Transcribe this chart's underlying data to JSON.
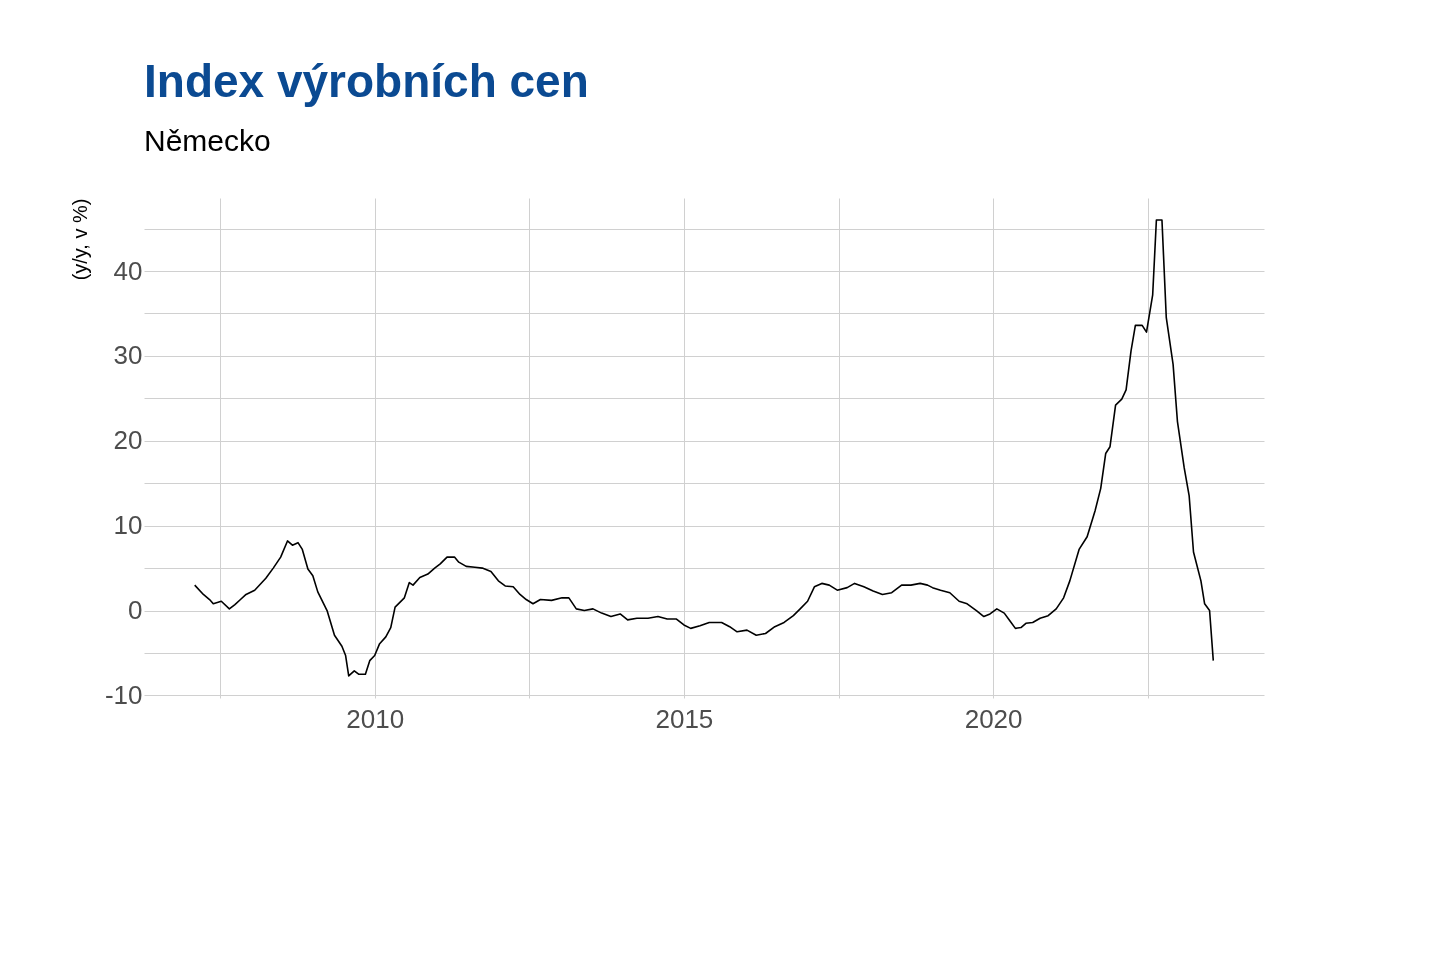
{
  "chart_data": {
    "type": "line",
    "title": "Index výrobních cen",
    "subtitle": "Německo",
    "ylabel": "(y/y, v %)",
    "xlim": [
      2006.27,
      2024.38
    ],
    "ylim": [
      -10.3,
      48.6
    ],
    "xticks": [
      {
        "value": 2007.5,
        "label": null
      },
      2010,
      {
        "value": 2012.5,
        "label": null
      },
      2015,
      {
        "value": 2017.5,
        "label": null
      },
      2020,
      {
        "value": 2022.5,
        "label": null
      }
    ],
    "yticks": [
      -10,
      {
        "value": -5,
        "label": null
      },
      0,
      {
        "value": 5,
        "label": null
      },
      10,
      {
        "value": 15,
        "label": null
      },
      20,
      {
        "value": 25,
        "label": null
      },
      30,
      {
        "value": 35,
        "label": null
      },
      40,
      {
        "value": 45,
        "label": null
      }
    ],
    "grid": true,
    "line_style": "solid",
    "series": [
      {
        "color": "#000000",
        "x": [
          2007.09,
          2007.23,
          2007.33,
          2007.39,
          2007.52,
          2007.65,
          2007.74,
          2007.83,
          2007.92,
          2008.06,
          2008.24,
          2008.36,
          2008.48,
          2008.59,
          2008.67,
          2008.76,
          2008.83,
          2008.92,
          2009.0,
          2009.08,
          2009.23,
          2009.35,
          2009.47,
          2009.53,
          2009.58,
          2009.67,
          2009.74,
          2009.85,
          2009.92,
          2010.0,
          2010.08,
          2010.18,
          2010.26,
          2010.33,
          2010.48,
          2010.56,
          2010.62,
          2010.73,
          2010.86,
          2010.97,
          2011.06,
          2011.17,
          2011.29,
          2011.36,
          2011.48,
          2011.62,
          2011.74,
          2011.88,
          2012.0,
          2012.11,
          2012.24,
          2012.35,
          2012.45,
          2012.56,
          2012.68,
          2012.86,
          2013.03,
          2013.14,
          2013.26,
          2013.39,
          2013.53,
          2013.67,
          2013.82,
          2013.97,
          2014.09,
          2014.24,
          2014.42,
          2014.58,
          2014.73,
          2014.88,
          2015.0,
          2015.11,
          2015.26,
          2015.41,
          2015.61,
          2015.74,
          2015.86,
          2016.02,
          2016.17,
          2016.32,
          2016.47,
          2016.62,
          2016.77,
          2016.88,
          2017.0,
          2017.11,
          2017.23,
          2017.35,
          2017.48,
          2017.64,
          2017.76,
          2017.91,
          2018.06,
          2018.21,
          2018.36,
          2018.52,
          2018.67,
          2018.82,
          2018.94,
          2019.02,
          2019.15,
          2019.3,
          2019.45,
          2019.58,
          2019.73,
          2019.85,
          2019.95,
          2020.06,
          2020.18,
          2020.27,
          2020.36,
          2020.45,
          2020.53,
          2020.64,
          2020.76,
          2020.89,
          2021.02,
          2021.14,
          2021.24,
          2021.39,
          2021.52,
          2021.65,
          2021.74,
          2021.82,
          2021.89,
          2021.98,
          2022.08,
          2022.15,
          2022.23,
          2022.3,
          2022.41,
          2022.48,
          2022.58,
          2022.64,
          2022.73,
          2022.8,
          2022.91,
          2022.98,
          2023.09,
          2023.17,
          2023.24,
          2023.36,
          2023.42,
          2023.5,
          2023.56
        ],
        "values": [
          3.0,
          1.9,
          1.3,
          0.8,
          1.1,
          0.2,
          0.7,
          1.3,
          1.9,
          2.4,
          3.8,
          5.0,
          6.3,
          8.2,
          7.7,
          8.0,
          7.2,
          4.9,
          4.1,
          2.2,
          0,
          -2.9,
          -4.2,
          -5.3,
          -7.7,
          -7.1,
          -7.5,
          -7.5,
          -5.9,
          -5.3,
          -3.9,
          -3.1,
          -2.0,
          0.4,
          1.5,
          3.3,
          3.0,
          3.9,
          4.3,
          5.0,
          5.5,
          6.3,
          6.3,
          5.7,
          5.2,
          5.1,
          5.0,
          4.6,
          3.5,
          2.9,
          2.8,
          1.9,
          1.3,
          0.8,
          1.3,
          1.2,
          1.5,
          1.5,
          0.2,
          0,
          0.2,
          -0.3,
          -0.7,
          -0.4,
          -1.1,
          -0.9,
          -0.9,
          -0.7,
          -1.0,
          -1.0,
          -1.7,
          -2.1,
          -1.8,
          -1.4,
          -1.4,
          -1.9,
          -2.5,
          -2.3,
          -2.9,
          -2.7,
          -1.9,
          -1.4,
          -0.6,
          0.2,
          1.1,
          2.8,
          3.2,
          3.0,
          2.4,
          2.7,
          3.2,
          2.8,
          2.3,
          1.9,
          2.1,
          3.0,
          3.0,
          3.2,
          3.0,
          2.7,
          2.4,
          2.1,
          1.1,
          0.8,
          0,
          -0.7,
          -0.4,
          0.2,
          -0.3,
          -1.2,
          -2.1,
          -2.0,
          -1.5,
          -1.4,
          -0.9,
          -0.6,
          0.2,
          1.5,
          3.5,
          7.2,
          8.7,
          11.8,
          14.4,
          18.5,
          19.3,
          24.2,
          24.9,
          26.0,
          30.6,
          33.6,
          33.6,
          32.8,
          37.2,
          46.0,
          46.0,
          34.5,
          29.0,
          22.3,
          16.8,
          13.5,
          6.9,
          3.5,
          0.8,
          0,
          -5.9
        ]
      }
    ]
  }
}
